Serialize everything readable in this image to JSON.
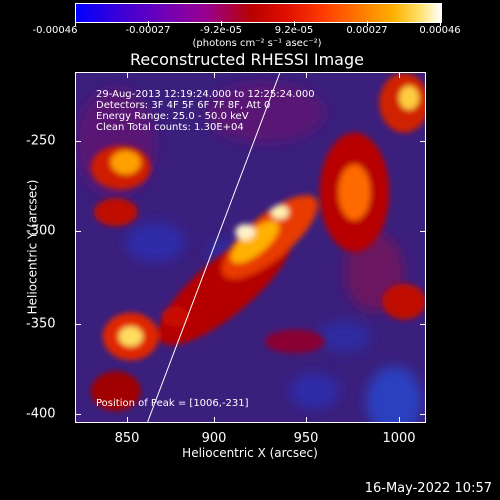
{
  "colorbar": {
    "ticks": [
      "-0.00046",
      "-0.00027",
      "-9.2e-05",
      "9.2e-05",
      "0.00027",
      "0.00046"
    ],
    "units_label": "(photons cm⁻² s⁻¹ asec⁻²)"
  },
  "title": "Reconstructed RHESSI Image",
  "overlay": {
    "time": "29-Aug-2013 12:19:24.000 to 12:25:24.000",
    "detectors": "Detectors: 3F 4F 5F 6F 7F 8F, Att 0",
    "energy": "Energy Range: 25.0 - 50.0 keV",
    "clean": "Clean     Total counts: 1.30E+04",
    "peak": "Position of Peak = [1006,-231]"
  },
  "axes": {
    "xlabel": "Heliocentric X (arcsec)",
    "ylabel": "Heliocentric Y (arcsec)",
    "xticks": [
      "850",
      "900",
      "950",
      "1000"
    ],
    "yticks": [
      "-250",
      "-300",
      "-350",
      "-400"
    ]
  },
  "footer": "16-May-2022 10:57"
}
